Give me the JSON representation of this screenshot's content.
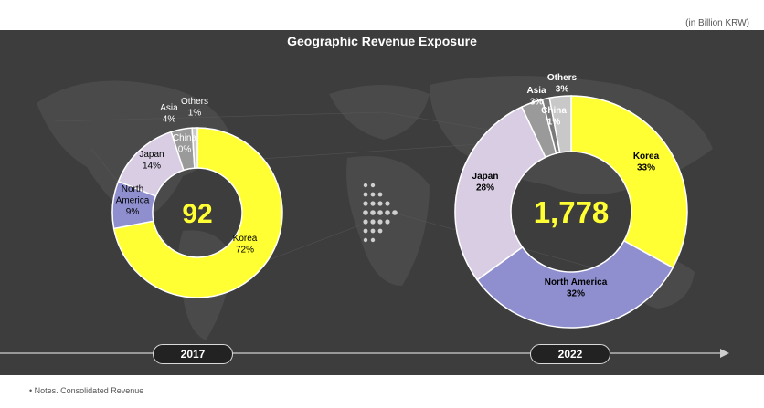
{
  "unit_note": "(in Billion KRW)",
  "title": "Geographic Revenue Exposure",
  "footnote": "• Notes. Consolidated Revenue",
  "colors": {
    "korea": "#ffff33",
    "north_america": "#8f8fcf",
    "japan": "#d8cde3",
    "asia": "#9a9a9a",
    "china": "#7a7a7a",
    "others": "#c8c8c8",
    "panel": "#3d3d3d"
  },
  "chart_data": [
    {
      "type": "pie",
      "year": "2017",
      "total": "92",
      "slices": [
        {
          "key": "korea",
          "name": "Korea",
          "value": 72,
          "label": "72%"
        },
        {
          "key": "north_america",
          "name": "North\nAmerica",
          "value": 9,
          "label": "9%"
        },
        {
          "key": "japan",
          "name": "Japan",
          "value": 14,
          "label": "14%"
        },
        {
          "key": "asia",
          "name": "Asia",
          "value": 4,
          "label": "4%"
        },
        {
          "key": "china",
          "name": "China",
          "value": 0,
          "label": "0%"
        },
        {
          "key": "others",
          "name": "Others",
          "value": 1,
          "label": "1%"
        }
      ]
    },
    {
      "type": "pie",
      "year": "2022",
      "total": "1,778",
      "slices": [
        {
          "key": "korea",
          "name": "Korea",
          "value": 33,
          "label": "33%"
        },
        {
          "key": "north_america",
          "name": "North America",
          "value": 32,
          "label": "32%"
        },
        {
          "key": "japan",
          "name": "Japan",
          "value": 28,
          "label": "28%"
        },
        {
          "key": "asia",
          "name": "Asia",
          "value": 3,
          "label": "3%"
        },
        {
          "key": "china",
          "name": "China",
          "value": 1,
          "label": "1%"
        },
        {
          "key": "others",
          "name": "Others",
          "value": 3,
          "label": "3%"
        }
      ]
    }
  ]
}
